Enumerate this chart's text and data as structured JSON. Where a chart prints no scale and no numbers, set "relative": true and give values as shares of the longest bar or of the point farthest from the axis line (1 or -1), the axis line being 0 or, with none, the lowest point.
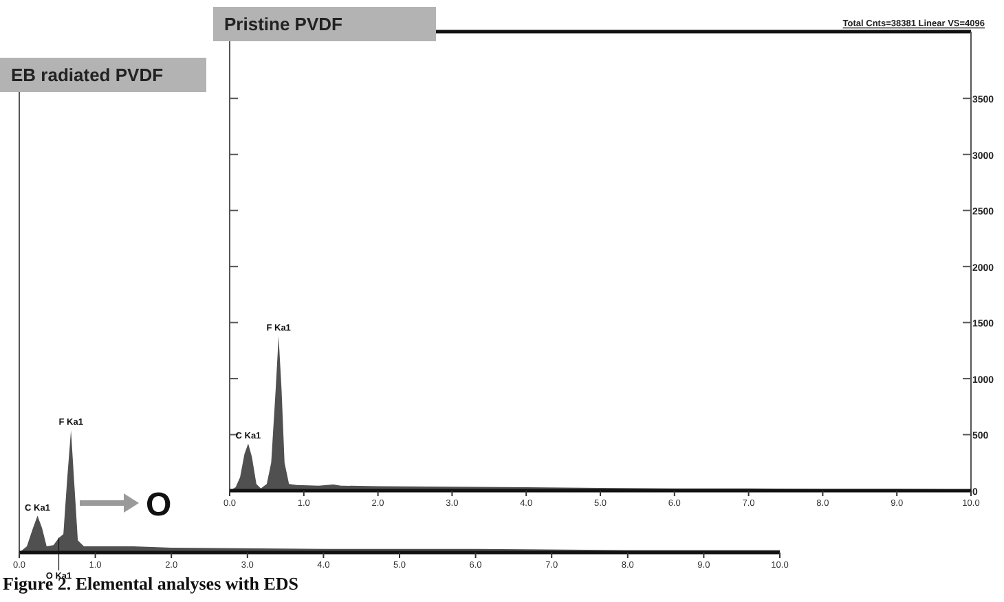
{
  "chart_data": [
    {
      "type": "area",
      "title": "Pristine PVDF",
      "subtitle": "Total Cnts=38381 Linear VS=4096",
      "xlim": [
        0,
        10
      ],
      "xticks": [
        {
          "value": 0,
          "label": "0.0"
        },
        {
          "value": 1,
          "label": "1.0"
        },
        {
          "value": 2,
          "label": "2.0"
        },
        {
          "value": 3,
          "label": "3.0"
        },
        {
          "value": 4,
          "label": "4.0"
        },
        {
          "value": 5,
          "label": "5.0"
        },
        {
          "value": 6,
          "label": "6.0"
        },
        {
          "value": 7,
          "label": "7.0"
        },
        {
          "value": 8,
          "label": "8.0"
        },
        {
          "value": 9,
          "label": "9.0"
        },
        {
          "value": 10,
          "label": "10.0"
        }
      ],
      "ylim": [
        0,
        4096
      ],
      "yticks": [
        0,
        500,
        1000,
        1500,
        2000,
        2500,
        3000,
        3500
      ],
      "color": "#505050",
      "x": [
        0,
        0.08,
        0.14,
        0.2,
        0.25,
        0.3,
        0.36,
        0.42,
        0.5,
        0.56,
        0.62,
        0.66,
        0.7,
        0.74,
        0.8,
        0.9,
        1.2,
        1.4,
        1.5,
        2,
        3,
        4,
        5,
        6,
        7,
        8,
        9,
        10
      ],
      "values": [
        0,
        30,
        120,
        330,
        420,
        300,
        60,
        20,
        60,
        250,
        900,
        1380,
        900,
        250,
        60,
        50,
        45,
        55,
        45,
        40,
        35,
        30,
        25,
        20,
        20,
        15,
        15,
        10
      ],
      "annotations": [
        {
          "text": "C Ka1",
          "x": 0.25,
          "y": 420
        },
        {
          "text": "F Ka1",
          "x": 0.66,
          "y": 1380
        }
      ]
    },
    {
      "type": "area",
      "title": "EB radiated PVDF",
      "relative": true,
      "xlim": [
        0,
        10
      ],
      "xticks": [
        {
          "value": 0,
          "label": "0.0"
        },
        {
          "value": 1,
          "label": "1.0"
        },
        {
          "value": 2,
          "label": "2.0"
        },
        {
          "value": 3,
          "label": "3.0"
        },
        {
          "value": 4,
          "label": "4.0"
        },
        {
          "value": 5,
          "label": "5.0"
        },
        {
          "value": 6,
          "label": "6.0"
        },
        {
          "value": 7,
          "label": "7.0"
        },
        {
          "value": 8,
          "label": "8.0"
        },
        {
          "value": 9,
          "label": "9.0"
        },
        {
          "value": 10,
          "label": "10.0"
        }
      ],
      "color": "#505050",
      "x": [
        0,
        0.1,
        0.18,
        0.24,
        0.3,
        0.36,
        0.45,
        0.52,
        0.58,
        0.63,
        0.68,
        0.72,
        0.77,
        0.85,
        1.5,
        2,
        4,
        6,
        8,
        10
      ],
      "values": [
        0,
        0.05,
        0.2,
        0.3,
        0.2,
        0.05,
        0.06,
        0.12,
        0.15,
        0.6,
        1,
        0.6,
        0.1,
        0.05,
        0.05,
        0.04,
        0.03,
        0.03,
        0.02,
        0.02
      ],
      "annotations": [
        {
          "text": "C Ka1",
          "x": 0.24,
          "y": 0.3
        },
        {
          "text": "O Ka1",
          "x": 0.52,
          "y": 0.12
        },
        {
          "text": "F Ka1",
          "x": 0.68,
          "y": 1
        },
        "O",
        "Figure 2. Elemental analyses with EDS"
      ]
    }
  ]
}
